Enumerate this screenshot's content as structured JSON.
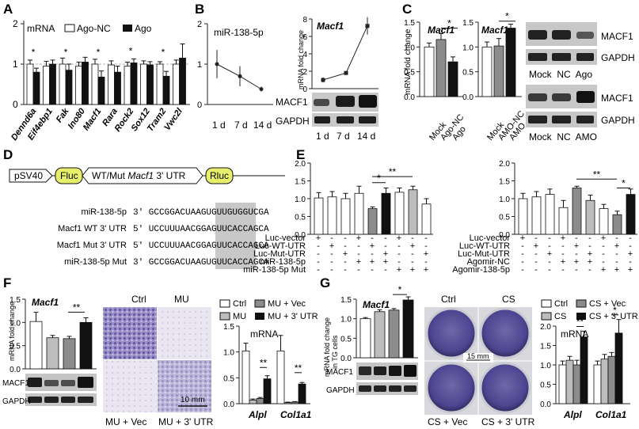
{
  "panels": {
    "A": {
      "letter": "A"
    },
    "B": {
      "letter": "B"
    },
    "C": {
      "letter": "C"
    },
    "D": {
      "letter": "D"
    },
    "E": {
      "letter": "E"
    },
    "F": {
      "letter": "F"
    },
    "G": {
      "letter": "G"
    }
  },
  "panelA": {
    "title": "mRNA",
    "legend": [
      "Ago-NC",
      "Ago"
    ],
    "genes": [
      "Dennd6a",
      "Eif4ebp1",
      "Fak",
      "Ino80",
      "Macf1",
      "Rara",
      "Rock2",
      "Sox12",
      "Tram2",
      "Vwc2l"
    ],
    "ticks": [
      "0",
      "1",
      "2"
    ],
    "sig": "*"
  },
  "panelB": {
    "title": "miR-138-5p",
    "xlabels": [
      "1 d",
      "7 d",
      "14 d"
    ],
    "ticks": [
      "0",
      "1",
      "2"
    ],
    "mrna_title": "Macf1",
    "mrna_ylabel": "mRNA fold change",
    "mrna_ticks": [
      "0",
      "2",
      "4",
      "6",
      "8"
    ],
    "blot_labels": [
      "MACF1",
      "GAPDH"
    ]
  },
  "panelC": {
    "title1": "Macf1",
    "title2": "Macf1",
    "ylabel": "mRNA fold change",
    "ticks": [
      "0.0",
      "0.5",
      "1.0",
      "1.5"
    ],
    "ticks2": [
      "0.0",
      "0.5",
      "1.0",
      "1.5"
    ],
    "xlabels1": [
      "Mock",
      "Ago-NC",
      "Ago"
    ],
    "xlabels2": [
      "Mock",
      "AMO-NC",
      "AMO"
    ],
    "blot1_labels": [
      "MACF1",
      "GAPDH"
    ],
    "blot1_lanes": "Mock  NC  Ago",
    "blot2_labels": [
      "MACF1",
      "GAPDH"
    ],
    "blot2_lanes": "Mock  NC  AMO"
  },
  "panelD": {
    "promoter": "pSV40",
    "fluc": "Fluc",
    "utr_pre": "WT/Mut ",
    "utr_gene": "Macf1",
    "utr_post": " 3' UTR",
    "rluc": "Rluc",
    "seq_rows": [
      {
        "label": "miR-138-5p",
        "seq": "3' GCCGGACUAAGUGUUGUGGUCGA"
      },
      {
        "label": "Macf1 WT 3' UTR",
        "seq": "5' UCCUUUAACGGAGUUCACCAGCA"
      },
      {
        "label": "Macf1 Mut 3' UTR",
        "seq": "5' UCCUUUAACGGAGUUCACCAGCA"
      },
      {
        "label": "miR-138-5p Mut",
        "seq": "3' GCCGGACUAAGUGUUCACCAGCA"
      }
    ]
  },
  "panelE": {
    "ticks": [
      "0.0",
      "0.5",
      "1.0",
      "1.5",
      "2.0"
    ],
    "rows_left": [
      "Luc-vector",
      "Luc-WT-UTR",
      "Luc-Mut-UTR",
      "miR-138-5p",
      "miR-138-5p Mut"
    ],
    "rows_right": [
      "Luc-vector",
      "Luc-WT-UTR",
      "Luc-Mut-UTR",
      "Agomir-NC",
      "Agomir-138-5p"
    ],
    "signs_left": [
      [
        "+",
        "-",
        "-",
        "+",
        "-",
        "-",
        "+",
        "-",
        "-"
      ],
      [
        "-",
        "+",
        "-",
        "-",
        "+",
        "-",
        "-",
        "+",
        "-"
      ],
      [
        "-",
        "-",
        "+",
        "-",
        "-",
        "+",
        "-",
        "-",
        "+"
      ],
      [
        "-",
        "-",
        "-",
        "+",
        "+",
        "+",
        "-",
        "-",
        "-"
      ],
      [
        "-",
        "-",
        "-",
        "-",
        "-",
        "-",
        "+",
        "+",
        "+"
      ]
    ],
    "signs_right": [
      [
        "+",
        "-",
        "-",
        "+",
        "-",
        "-",
        "+",
        "-",
        "-"
      ],
      [
        "-",
        "+",
        "-",
        "-",
        "+",
        "-",
        "-",
        "+",
        "-"
      ],
      [
        "-",
        "-",
        "+",
        "-",
        "-",
        "+",
        "-",
        "-",
        "+"
      ],
      [
        "-",
        "-",
        "-",
        "+",
        "+",
        "+",
        "-",
        "-",
        "-"
      ],
      [
        "-",
        "-",
        "-",
        "-",
        "-",
        "-",
        "+",
        "+",
        "+"
      ]
    ],
    "sig1": "*",
    "sig2": "**"
  },
  "panelF": {
    "title": "Macf1",
    "ylabel": "mRNA fold change",
    "ticks": [
      "0.0",
      "0.5",
      "1.0",
      "1.5"
    ],
    "blot_labels": [
      "MACF1",
      "GAPDH"
    ],
    "img_top": [
      "Ctrl",
      "MU"
    ],
    "img_bottom": [
      "MU + Vec",
      "MU + 3' UTR"
    ],
    "scale": "10 mm",
    "legend": [
      "Ctrl",
      "MU + Vec",
      "MU",
      "MU + 3' UTR"
    ],
    "mrna_title": "mRNA",
    "mrna_ticks": [
      "0.0",
      "0.5",
      "1.0",
      "1.5"
    ],
    "genes": [
      "Alpl",
      "Col1a1"
    ],
    "sig": "**"
  },
  "panelG": {
    "title": "Macf1",
    "ylabel1": "mRNA fold change",
    "ylabel2": "in TG cells",
    "ticks": [
      "0.0",
      "0.5",
      "1.0",
      "1.5"
    ],
    "blot_labels": [
      "MACF1",
      "GAPDH"
    ],
    "img_top": [
      "Ctrl",
      "CS"
    ],
    "img_bottom": [
      "CS + Vec",
      "CS + 3' UTR"
    ],
    "scale": "15 mm",
    "legend": [
      "Ctrl",
      "CS + Vec",
      "CS",
      "CS + 3' UTR"
    ],
    "mrna_title": "mRNA",
    "mrna_ticks": [
      "0.0",
      "0.5",
      "1.0",
      "1.5",
      "2.0"
    ],
    "genes": [
      "Alpl",
      "Col1a1"
    ],
    "sig1": "**",
    "sig2": "*"
  },
  "colors": {
    "white": "#ffffff",
    "black": "#111111",
    "gray": "#8c8c8c",
    "lightgray": "#bdbdbd",
    "highlight": "#c8c8c8",
    "fluc": "#e8ef6a",
    "stain": "#6b5fa8"
  },
  "chart_data": [
    {
      "type": "bar",
      "panel": "A",
      "categories": [
        "Dennd6a",
        "Eif4ebp1",
        "Fak",
        "Ino80",
        "Macf1",
        "Rara",
        "Rock2",
        "Sox12",
        "Tram2",
        "Vwc2l"
      ],
      "series": [
        {
          "name": "Ago-NC",
          "values": [
            1.0,
            0.95,
            1.0,
            0.95,
            1.0,
            0.98,
            0.95,
            1.0,
            1.0,
            1.0
          ]
        },
        {
          "name": "Ago",
          "values": [
            0.8,
            1.0,
            0.85,
            1.05,
            0.68,
            0.8,
            1.03,
            0.98,
            0.7,
            1.15
          ]
        }
      ],
      "ylim": [
        0,
        2
      ]
    },
    {
      "type": "line",
      "panel": "B",
      "title": "miR-138-5p",
      "x": [
        "1 d",
        "7 d",
        "14 d"
      ],
      "values": [
        1.0,
        0.7,
        0.38
      ],
      "ylim": [
        0,
        2
      ]
    },
    {
      "type": "line",
      "panel": "B",
      "title": "Macf1",
      "ylabel": "mRNA fold change",
      "x": [
        "1 d",
        "7 d",
        "14 d"
      ],
      "values": [
        1.0,
        1.8,
        7.2
      ],
      "ylim": [
        0,
        8
      ]
    },
    {
      "type": "bar",
      "panel": "C",
      "title": "Macf1",
      "ylabel": "mRNA fold change",
      "categories": [
        "Mock",
        "Ago-NC",
        "Ago"
      ],
      "values": [
        1.0,
        1.15,
        0.7
      ],
      "ylim": [
        0,
        1.5
      ]
    },
    {
      "type": "bar",
      "panel": "C",
      "title": "Macf1",
      "categories": [
        "Mock",
        "AMO-NC",
        "AMO"
      ],
      "values": [
        1.0,
        1.02,
        1.38
      ],
      "ylim": [
        0,
        1.5
      ]
    },
    {
      "type": "bar",
      "panel": "E-left",
      "values": [
        1.02,
        1.05,
        1.0,
        1.15,
        0.72,
        1.15,
        1.18,
        1.25,
        0.85
      ],
      "ylim": [
        0,
        2
      ]
    },
    {
      "type": "bar",
      "panel": "E-right",
      "values": [
        1.0,
        1.05,
        1.12,
        0.75,
        1.3,
        0.95,
        0.72,
        0.55,
        1.12
      ],
      "ylim": [
        0,
        2
      ]
    },
    {
      "type": "bar",
      "panel": "F",
      "title": "Macf1",
      "ylabel": "mRNA fold change",
      "categories": [
        "Ctrl",
        "MU",
        "MU + Vec",
        "MU + 3' UTR"
      ],
      "values": [
        1.02,
        0.67,
        0.65,
        1.0
      ],
      "ylim": [
        0,
        1.5
      ]
    },
    {
      "type": "bar",
      "panel": "F",
      "title": "mRNA",
      "categories": [
        "Alpl",
        "Col1a1"
      ],
      "series": [
        {
          "name": "Ctrl",
          "values": [
            1.02,
            1.02
          ]
        },
        {
          "name": "MU",
          "values": [
            0.07,
            0.02
          ]
        },
        {
          "name": "MU + Vec",
          "values": [
            0.1,
            0.03
          ]
        },
        {
          "name": "MU + 3' UTR",
          "values": [
            0.48,
            0.38
          ]
        }
      ],
      "ylim": [
        0,
        1.5
      ]
    },
    {
      "type": "bar",
      "panel": "G",
      "title": "Macf1",
      "categories": [
        "Ctrl",
        "CS",
        "CS + Vec",
        "CS + 3' UTR"
      ],
      "values": [
        1.0,
        1.18,
        1.22,
        1.48
      ],
      "ylim": [
        0,
        1.5
      ]
    },
    {
      "type": "bar",
      "panel": "G",
      "title": "mRNA",
      "categories": [
        "Alpl",
        "Col1a1"
      ],
      "series": [
        {
          "name": "Ctrl",
          "values": [
            1.0,
            1.0
          ]
        },
        {
          "name": "CS",
          "values": [
            1.12,
            1.15
          ]
        },
        {
          "name": "CS + Vec",
          "values": [
            1.0,
            1.22
          ]
        },
        {
          "name": "CS + 3' UTR",
          "values": [
            1.72,
            1.82
          ]
        }
      ],
      "ylim": [
        0,
        2
      ]
    }
  ]
}
